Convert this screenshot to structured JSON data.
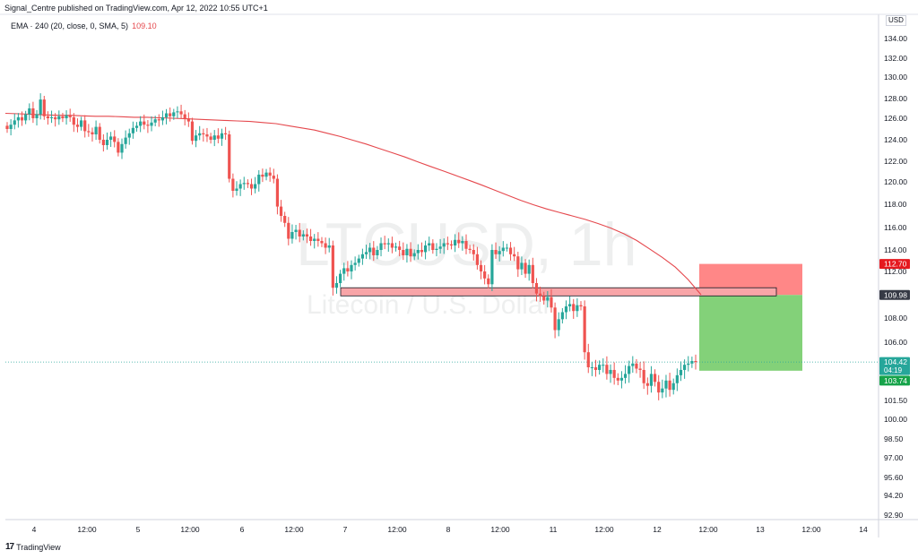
{
  "header": {
    "published_note": "Signal_Centre published on TradingView.com, Apr 12, 2022 10:55 UTC+1"
  },
  "indicator": {
    "label": "EMA · 240 (20, close, 0, SMA, 5)",
    "value": "109.10"
  },
  "watermark": {
    "symbol": "LTCUSD, 1h",
    "name": "Litecoin / U.S. Dollar"
  },
  "currency": "USD",
  "brand": {
    "logo": "17",
    "name": "TradingView"
  },
  "colors": {
    "up": "#26a69a",
    "down": "#ef5350",
    "ema": "#e5484d",
    "stop_zone": "#ff7a7a",
    "target_zone": "#7ccf72",
    "price_line": "#26a69a",
    "level_box": "#f8a5a8"
  },
  "chart_data": {
    "type": "candlestick",
    "symbol": "LTCUSD",
    "timeframe": "1h",
    "y_ticks": [
      "134.00",
      "132.00",
      "130.00",
      "128.00",
      "126.00",
      "124.00",
      "122.00",
      "120.00",
      "118.00",
      "116.00",
      "114.00",
      "112.00",
      "110.00",
      "108.00",
      "106.00",
      "104.00",
      "101.50",
      "100.00",
      "98.50",
      "97.00",
      "95.60",
      "94.20",
      "92.90"
    ],
    "x_ticks": [
      "4",
      "12:00",
      "5",
      "12:00",
      "6",
      "12:00",
      "7",
      "12:00",
      "8",
      "12:00",
      "11",
      "12:00",
      "12",
      "12:00",
      "13",
      "12:00",
      "14"
    ],
    "price_labels": {
      "stop": "112.70",
      "entry": "109.98",
      "current": "104.42",
      "countdown": "04:19",
      "target": "103.74"
    },
    "close_series": [
      125.0,
      125.4,
      125.8,
      126.1,
      125.8,
      126.4,
      127.0,
      126.0,
      126.4,
      127.9,
      126.2,
      126.0,
      126.1,
      125.9,
      126.2,
      126.0,
      126.3,
      126.1,
      125.4,
      125.2,
      125.8,
      124.8,
      124.7,
      124.5,
      125.2,
      124.0,
      123.5,
      124.0,
      124.3,
      123.8,
      122.8,
      123.6,
      124.2,
      124.6,
      125.1,
      125.3,
      125.7,
      125.4,
      125.3,
      125.6,
      125.9,
      125.8,
      126.1,
      126.5,
      126.2,
      126.6,
      126.7,
      126.4,
      126.0,
      125.7,
      123.9,
      124.4,
      124.6,
      124.5,
      124.3,
      124.0,
      124.4,
      124.1,
      124.6,
      124.5,
      120.3,
      119.2,
      119.4,
      119.8,
      119.9,
      119.8,
      119.4,
      119.8,
      120.7,
      120.5,
      120.9,
      120.6,
      120.3,
      117.8,
      117.0,
      116.4,
      115.0,
      115.6,
      115.8,
      115.2,
      115.4,
      115.2,
      114.8,
      115.0,
      114.8,
      114.6,
      114.2,
      114.4,
      110.6,
      111.0,
      111.8,
      112.3,
      112.0,
      112.6,
      112.8,
      113.2,
      113.6,
      113.8,
      114.2,
      113.5,
      114.0,
      114.6,
      114.5,
      114.6,
      114.2,
      114.3,
      114.0,
      113.5,
      114.1,
      113.4,
      113.7,
      114.0,
      113.8,
      114.4,
      114.6,
      114.0,
      114.1,
      114.3,
      114.6,
      114.5,
      114.4,
      114.9,
      114.6,
      114.8,
      114.1,
      114.0,
      113.6,
      112.6,
      112.0,
      111.4,
      110.9,
      114.0,
      113.6,
      113.9,
      114.2,
      114.2,
      113.6,
      113.4,
      112.2,
      112.8,
      111.8,
      112.6,
      111.0,
      110.1,
      109.9,
      109.5,
      109.8,
      108.9,
      107.0,
      107.9,
      108.5,
      109.0,
      109.2,
      108.6,
      109.1,
      109.0,
      105.2,
      104.0,
      104.0,
      103.8,
      104.2,
      104.2,
      103.5,
      103.8,
      103.2,
      103.0,
      103.2,
      103.5,
      104.1,
      104.3,
      103.9,
      103.8,
      102.8,
      102.6,
      103.5,
      102.9,
      102.1,
      102.4,
      103.0,
      102.3,
      102.8,
      103.4,
      103.8,
      104.2,
      104.3,
      104.5,
      104.42
    ],
    "ema_series": [
      126.5,
      126.45,
      126.4,
      126.35,
      126.3,
      126.3,
      126.25,
      126.2,
      126.2,
      126.15,
      126.1,
      126.1,
      126.05,
      126.0,
      125.95,
      125.9,
      125.85,
      125.8,
      125.75,
      125.7,
      125.6,
      125.5,
      125.3,
      125.1,
      124.9,
      124.6,
      124.3,
      123.95,
      123.6,
      123.2,
      122.8,
      122.4,
      121.95,
      121.5,
      121.05,
      120.6,
      120.15,
      119.7,
      119.25,
      118.8,
      118.35,
      117.95,
      117.6,
      117.3,
      117.0,
      116.7,
      116.35,
      115.95,
      115.45,
      114.85,
      114.1,
      113.3,
      112.4,
      111.3,
      110.0
    ],
    "trade_setup": {
      "stop": 112.7,
      "entry": 109.98,
      "target": 103.74
    },
    "resistance_zone": {
      "low": 109.9,
      "high": 110.6
    },
    "title": "",
    "xlabel": "",
    "ylabel": "",
    "ylim": [
      92.9,
      134.5
    ],
    "grid": false,
    "legend": "top-left"
  }
}
